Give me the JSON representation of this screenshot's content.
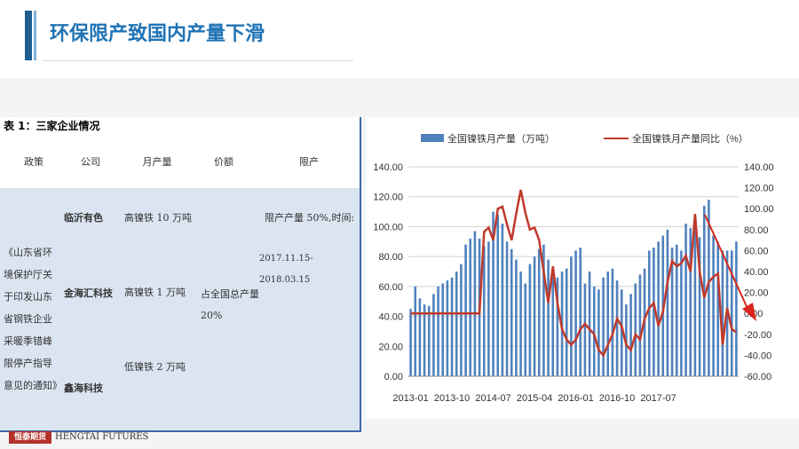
{
  "slide": {
    "title": "环保限产致国内产量下滑"
  },
  "table": {
    "caption": "表 1：三家企业情况",
    "headers": [
      "政策",
      "公司",
      "月产量",
      "价额",
      "限产"
    ],
    "policy": "《山东省环境保护厅关于印发山东省钢铁企业采暖季错峰限停产指导意见的通知》",
    "companies": [
      {
        "name": "临沂有色",
        "output": "高镍铁 10 万吨"
      },
      {
        "name": "金海汇科技",
        "output": "高镍铁 1 万吨"
      },
      {
        "name": "鑫海科技",
        "output": "低镍铁 2 万吨"
      }
    ],
    "share": "占全国总产量 20%",
    "limit_line1": "限产产量 50%,时间:",
    "limit_line2": "2017.11.15-2018.03.15"
  },
  "footer": {
    "logo": "恒泰期货",
    "text": "HENGTAI FUTURES"
  },
  "chart_data": {
    "type": "bar",
    "series": [
      {
        "name": "全国镍铁月产量（万吨）",
        "type": "bar",
        "color": "#4f81bd",
        "values": [
          45,
          60,
          52,
          48,
          47,
          55,
          60,
          62,
          64,
          66,
          70,
          75,
          88,
          92,
          97,
          92,
          87,
          90,
          110,
          108,
          102,
          90,
          85,
          78,
          70,
          62,
          75,
          80,
          85,
          88,
          78,
          68,
          66,
          70,
          72,
          80,
          84,
          86,
          62,
          70,
          60,
          58,
          66,
          70,
          72,
          64,
          58,
          48,
          55,
          62,
          68,
          72,
          84,
          86,
          90,
          94,
          98,
          86,
          88,
          84,
          102,
          99,
          100,
          93,
          114,
          118,
          94,
          90,
          84,
          84,
          84,
          90
        ]
      },
      {
        "name": "全国镍铁月产量同比（%）",
        "type": "line",
        "color": "#c0392b",
        "axis": "right",
        "values": [
          0,
          0,
          0,
          0,
          0,
          0,
          0,
          0,
          0,
          0,
          0,
          0,
          0,
          0,
          0,
          0,
          78,
          82,
          70,
          100,
          102,
          85,
          70,
          95,
          118,
          96,
          80,
          82,
          70,
          40,
          10,
          45,
          10,
          -15,
          -25,
          -30,
          -25,
          -15,
          -10,
          -15,
          -20,
          -35,
          -40,
          -30,
          -20,
          -5,
          -12,
          -30,
          -35,
          -20,
          -25,
          -5,
          5,
          10,
          -12,
          2,
          30,
          50,
          45,
          48,
          55,
          40,
          95,
          40,
          15,
          30,
          35,
          38,
          -30,
          5,
          -15,
          -18
        ]
      }
    ],
    "x_tick_labels": [
      "2013-01",
      "2013-10",
      "2014-07",
      "2015-04",
      "2016-01",
      "2016-10",
      "2017-07"
    ],
    "y_left": {
      "min": 0,
      "max": 140,
      "ticks": [
        "0.00",
        "20.00",
        "40.00",
        "60.00",
        "80.00",
        "100.00",
        "120.00",
        "140.00"
      ]
    },
    "y_right": {
      "min": -60,
      "max": 140,
      "ticks": [
        "-60.00",
        "-40.00",
        "-20.00",
        "0.00",
        "20.00",
        "40.00",
        "60.00",
        "80.00",
        "100.00",
        "120.00",
        "140.00"
      ]
    },
    "grid": true,
    "legend_position": "top",
    "annotation": "red arrow pointing down at end of series"
  }
}
